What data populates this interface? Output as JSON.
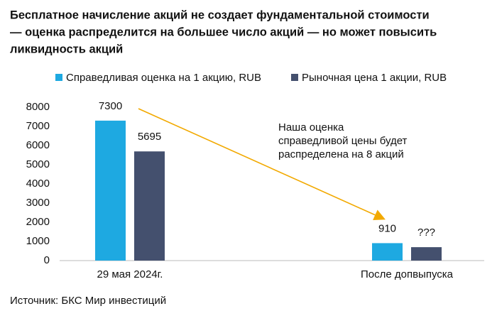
{
  "chart_data": {
    "type": "bar",
    "title": [
      "Бесплатное начисление акций не создает фундаментальной стоимости",
      "— оценка распределится на большее число акций — но может повысить",
      "ликвидность акций"
    ],
    "categories": [
      "29 мая 2024г.",
      "После допвыпуска"
    ],
    "series": [
      {
        "name": "Справедливая оценка на 1 акцию, RUB",
        "color": "#1ea9e1",
        "values": [
          7300,
          910
        ]
      },
      {
        "name": "Рыночная цена 1 акции, RUB",
        "color": "#44506e",
        "values": [
          5695,
          700
        ],
        "value_labels": [
          "5695",
          "???"
        ]
      }
    ],
    "ylim": [
      0,
      8000
    ],
    "yticks": [
      0,
      1000,
      2000,
      3000,
      4000,
      5000,
      6000,
      7000,
      8000
    ],
    "grid": false,
    "annotation": [
      "Наша оценка",
      "справедливой цены будет",
      "распределена на 8 акций"
    ],
    "source": "Источник: БКС Мир инвестиций"
  }
}
